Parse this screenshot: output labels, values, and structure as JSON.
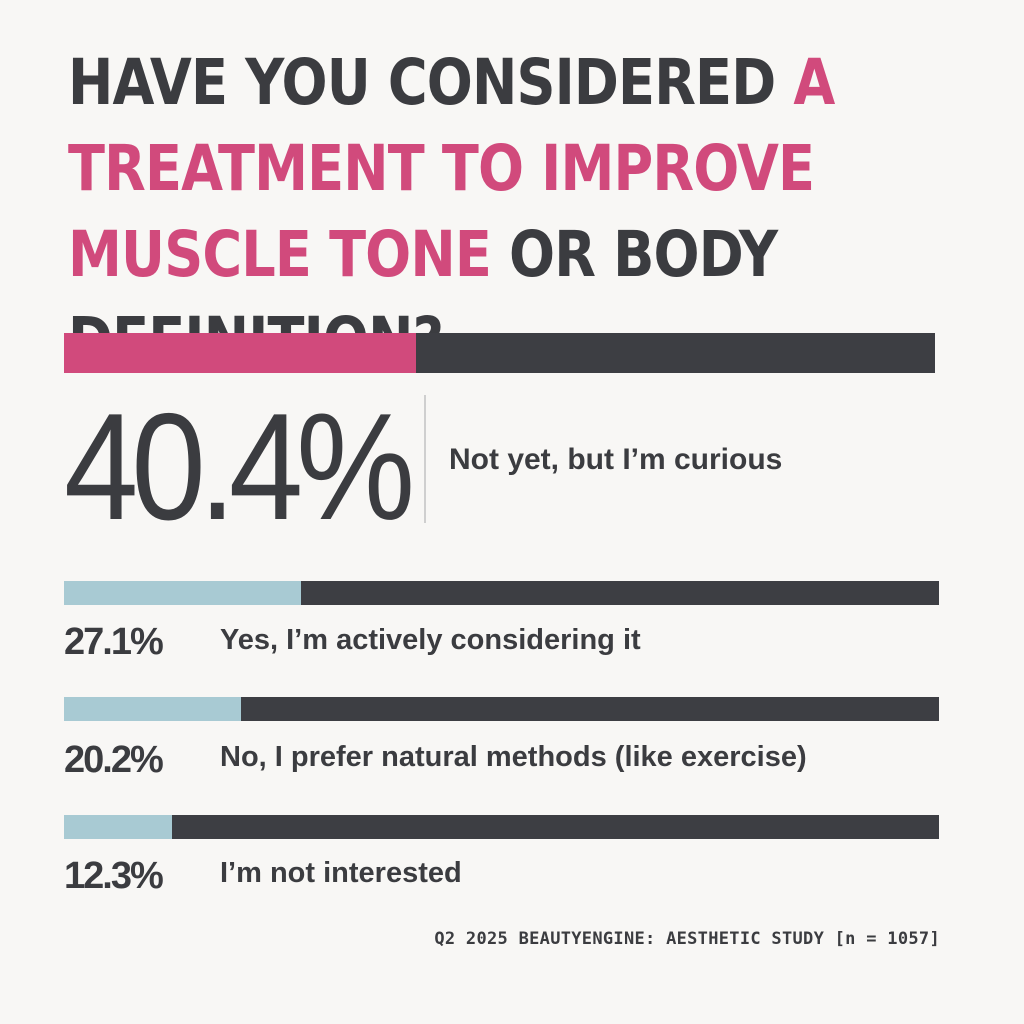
{
  "colors": {
    "highlight": "#d14a7c",
    "secondary_fill": "#a8cad3",
    "track": "#3d3e43",
    "text": "#3b3c40",
    "background": "#f8f7f5"
  },
  "title": {
    "part1": "HAVE YOU CONSIDERED ",
    "highlight": "A TREATMENT TO IMPROVE MUSCLE TONE",
    "part2": " OR BODY DEFINITION?"
  },
  "chart_data": {
    "type": "bar",
    "orientation": "horizontal",
    "unit": "%",
    "xlim": [
      0,
      100
    ],
    "categories": [
      "Not yet, but I’m curious",
      "Yes, I’m actively considering it",
      "No, I prefer natural methods (like exercise)",
      "I’m not interested"
    ],
    "values": [
      40.4,
      27.1,
      20.2,
      12.3
    ],
    "value_labels": [
      "40.4%",
      "27.1%",
      "20.2%",
      "12.3%"
    ]
  },
  "source": "Q2 2025 BEAUTYENGINE: AESTHETIC STUDY [n = 1057]"
}
